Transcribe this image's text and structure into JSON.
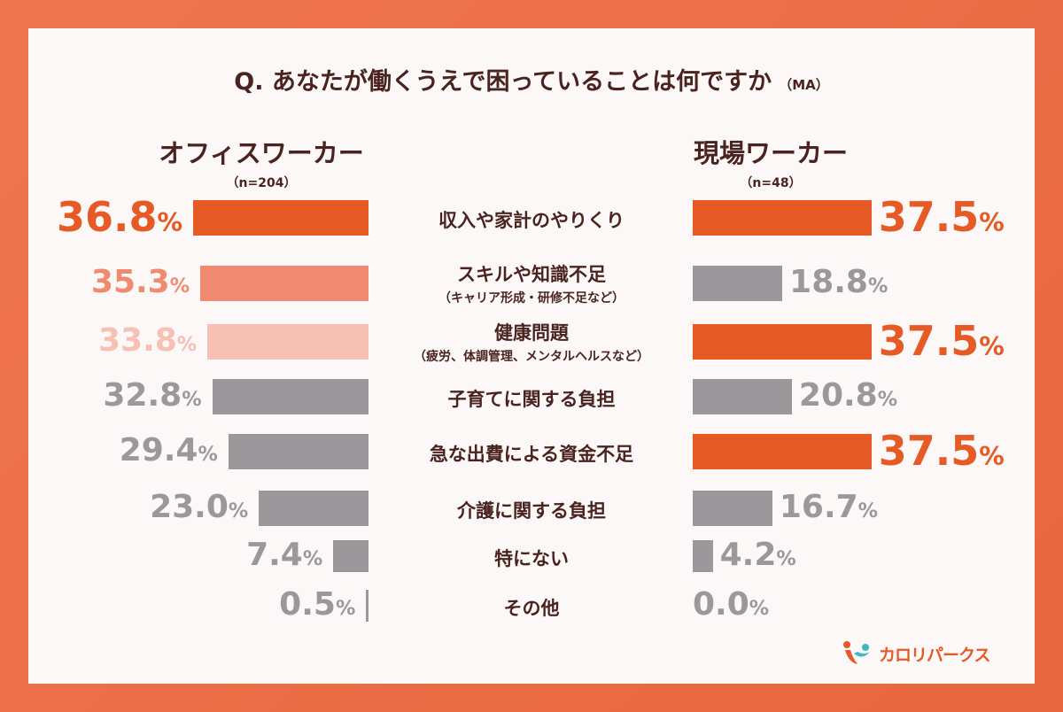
{
  "title": {
    "text": "Q. あなたが働くうえで困っていることは何ですか",
    "note": "（MA）"
  },
  "groups": {
    "left": {
      "name": "オフィスワーカー",
      "n": "（n=204）"
    },
    "right": {
      "name": "現場ワーカー",
      "n": "（n=48）"
    }
  },
  "colors": {
    "accent": "#E55A25",
    "second": "#F08A70",
    "third": "#F7C0B5",
    "gray": "#9B979B",
    "text": "#4A2320"
  },
  "logo": {
    "text": "カロリパークス"
  },
  "chart_data": {
    "type": "bar",
    "title": "Q. あなたが働くうえで困っていることは何ですか（MA）",
    "unit": "%",
    "categories": [
      {
        "main": "収入や家計のやりくり",
        "sub": ""
      },
      {
        "main": "スキルや知識不足",
        "sub": "（キャリア形成・研修不足など）"
      },
      {
        "main": "健康問題",
        "sub": "（疲労、体調管理、メンタルヘルスなど）"
      },
      {
        "main": "子育てに関する負担",
        "sub": ""
      },
      {
        "main": "急な出費による資金不足",
        "sub": ""
      },
      {
        "main": "介護に関する負担",
        "sub": ""
      },
      {
        "main": "特にない",
        "sub": ""
      },
      {
        "main": "その他",
        "sub": ""
      }
    ],
    "series": [
      {
        "name": "オフィスワーカー",
        "values": [
          36.8,
          35.3,
          33.8,
          32.8,
          29.4,
          23.0,
          7.4,
          0.5
        ],
        "labels": [
          "36.8",
          "35.3",
          "33.8",
          "32.8",
          "29.4",
          "23.0",
          "7.4",
          "0.5"
        ],
        "colors": [
          "#E55A25",
          "#F08A70",
          "#F7C0B5",
          "#9B979B",
          "#9B979B",
          "#9B979B",
          "#9B979B",
          "#9B979B"
        ]
      },
      {
        "name": "現場ワーカー",
        "values": [
          37.5,
          18.8,
          37.5,
          20.8,
          37.5,
          16.7,
          4.2,
          0.0
        ],
        "labels": [
          "37.5",
          "18.8",
          "37.5",
          "20.8",
          "37.5",
          "16.7",
          "4.2",
          "0.0"
        ],
        "colors": [
          "#E55A25",
          "#9B979B",
          "#E55A25",
          "#9B979B",
          "#E55A25",
          "#9B979B",
          "#9B979B",
          "#9B979B"
        ]
      }
    ]
  }
}
